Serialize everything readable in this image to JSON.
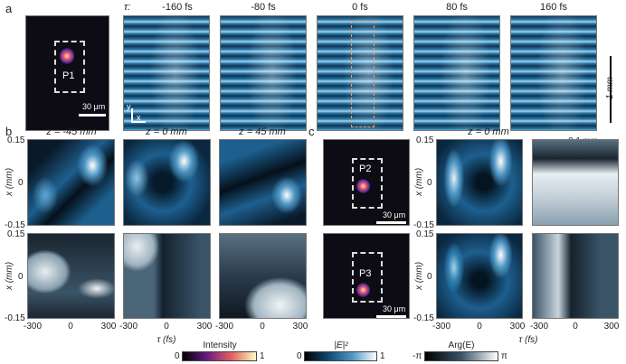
{
  "panel_a": {
    "label": "a",
    "tau_label": "τ:",
    "pinhole": "P1",
    "scale_um": "30 μm",
    "delays": [
      "-160 fs",
      "-80 fs",
      "0 fs",
      "80 fs",
      "160 fs"
    ],
    "axis_y": "y",
    "axis_x": "x",
    "scale_v": "1 mm",
    "scale_h": "0.1 mm"
  },
  "panel_b": {
    "label": "b",
    "titles": [
      "z = -45 mm",
      "z = 0 mm",
      "z = 45 mm"
    ],
    "yticks": [
      "0.15",
      "0",
      "-0.15"
    ],
    "ylabel": "x (mm)",
    "xticks": [
      "-300",
      "0",
      "300"
    ],
    "xlabel": "τ (fs)"
  },
  "panel_c": {
    "label": "c",
    "title": "z = 0 mm",
    "pinholes": [
      "P2",
      "P3"
    ],
    "scale_um": "30 μm",
    "yticks": [
      "0.15",
      "0",
      "-0.15"
    ],
    "ylabel": "x (mm)",
    "xticks": [
      "-300",
      "0",
      "300"
    ],
    "xlabel": "τ (fs)"
  },
  "colorbars": [
    {
      "label": "Intensity",
      "min": "0",
      "max": "1",
      "colors": [
        "#000004",
        "#6a1c81",
        "#e35f5f",
        "#fcfdbf"
      ]
    },
    {
      "label": "|E|²",
      "min": "0",
      "max": "1",
      "colors": [
        "#000000",
        "#0f4a75",
        "#4f97c4",
        "#ffffff"
      ]
    },
    {
      "label": "Arg(E)",
      "min": "-π",
      "max": "π",
      "colors": [
        "#000000",
        "#3a5468",
        "#ffffff"
      ]
    }
  ]
}
